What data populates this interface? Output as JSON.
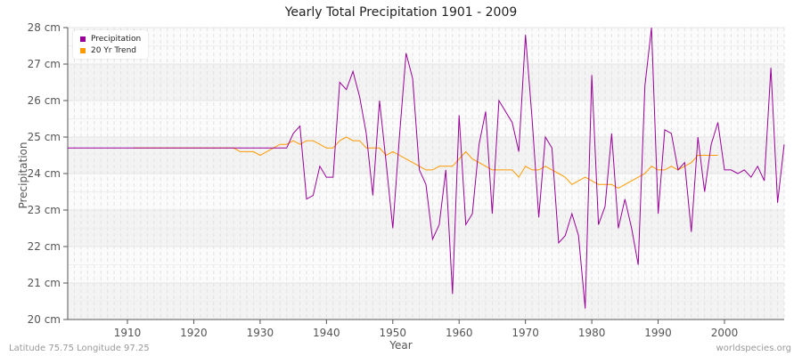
{
  "header": {
    "title": "Yearly Total Precipitation 1901 - 2009"
  },
  "axes": {
    "ylabel": "Precipitation",
    "xlabel": "Year",
    "yticks": [
      "20 cm",
      "21 cm",
      "22 cm",
      "23 cm",
      "24 cm",
      "25 cm",
      "26 cm",
      "27 cm",
      "28 cm"
    ],
    "xticks": [
      "1910",
      "1920",
      "1930",
      "1940",
      "1950",
      "1960",
      "1970",
      "1980",
      "1990",
      "2000"
    ]
  },
  "legend": {
    "items": [
      {
        "label": "Precipitation",
        "color": "#990099"
      },
      {
        "label": "20 Yr Trend",
        "color": "#FF9900"
      }
    ]
  },
  "footer": {
    "location": "Latitude 75.75 Longitude 97.25",
    "source": "worldspecies.org"
  },
  "chart_data": {
    "type": "line",
    "title": "Yearly Total Precipitation 1901 - 2009",
    "xlabel": "Year",
    "ylabel": "Precipitation",
    "ylim": [
      20,
      28
    ],
    "xlim": [
      1901,
      2009
    ],
    "y_unit": "cm",
    "grid": true,
    "legend_position": "top-left",
    "series": [
      {
        "name": "Precipitation",
        "color": "#990099",
        "x_start": 1901,
        "values": [
          24.7,
          24.7,
          24.7,
          24.7,
          24.7,
          24.7,
          24.7,
          24.7,
          24.7,
          24.7,
          24.7,
          24.7,
          24.7,
          24.7,
          24.7,
          24.7,
          24.7,
          24.7,
          24.7,
          24.7,
          24.7,
          24.7,
          24.7,
          24.7,
          24.7,
          24.7,
          24.7,
          24.7,
          24.7,
          24.7,
          24.7,
          24.7,
          24.7,
          24.7,
          25.1,
          25.3,
          23.3,
          23.4,
          24.2,
          23.9,
          23.9,
          26.5,
          26.3,
          26.8,
          26.1,
          25.1,
          23.4,
          26.0,
          24.3,
          22.5,
          25.0,
          27.3,
          26.6,
          24.1,
          23.7,
          22.2,
          22.6,
          24.1,
          20.7,
          25.6,
          22.6,
          22.9,
          24.8,
          25.7,
          22.9,
          26.0,
          25.7,
          25.4,
          24.6,
          27.8,
          25.5,
          22.8,
          25.0,
          24.7,
          22.1,
          22.3,
          22.9,
          22.3,
          20.3,
          26.7,
          22.6,
          23.1,
          25.1,
          22.5,
          23.3,
          22.5,
          21.5,
          26.4,
          28.0,
          22.9,
          25.2,
          25.1,
          24.1,
          24.3,
          22.4,
          25.0,
          23.5,
          24.8,
          25.4,
          24.1,
          24.1,
          24.0,
          24.1,
          23.9,
          24.2,
          23.8,
          26.9,
          23.2,
          24.8
        ]
      },
      {
        "name": "20 Yr Trend",
        "color": "#FF9900",
        "x_start": 1911,
        "values": [
          24.7,
          24.7,
          24.7,
          24.7,
          24.7,
          24.7,
          24.7,
          24.7,
          24.7,
          24.7,
          24.7,
          24.7,
          24.7,
          24.7,
          24.7,
          24.7,
          24.6,
          24.6,
          24.6,
          24.5,
          24.6,
          24.7,
          24.8,
          24.8,
          24.9,
          24.8,
          24.9,
          24.9,
          24.8,
          24.7,
          24.7,
          24.9,
          25.0,
          24.9,
          24.9,
          24.7,
          24.7,
          24.7,
          24.5,
          24.6,
          24.5,
          24.4,
          24.3,
          24.2,
          24.1,
          24.1,
          24.2,
          24.2,
          24.2,
          24.4,
          24.6,
          24.4,
          24.3,
          24.2,
          24.1,
          24.1,
          24.1,
          24.1,
          23.9,
          24.2,
          24.1,
          24.1,
          24.2,
          24.1,
          24.0,
          23.9,
          23.7,
          23.8,
          23.9,
          23.8,
          23.7,
          23.7,
          23.7,
          23.6,
          23.7,
          23.8,
          23.9,
          24.0,
          24.2,
          24.1,
          24.1,
          24.2,
          24.1,
          24.2,
          24.3,
          24.5,
          24.5,
          24.5,
          24.5
        ]
      }
    ]
  }
}
